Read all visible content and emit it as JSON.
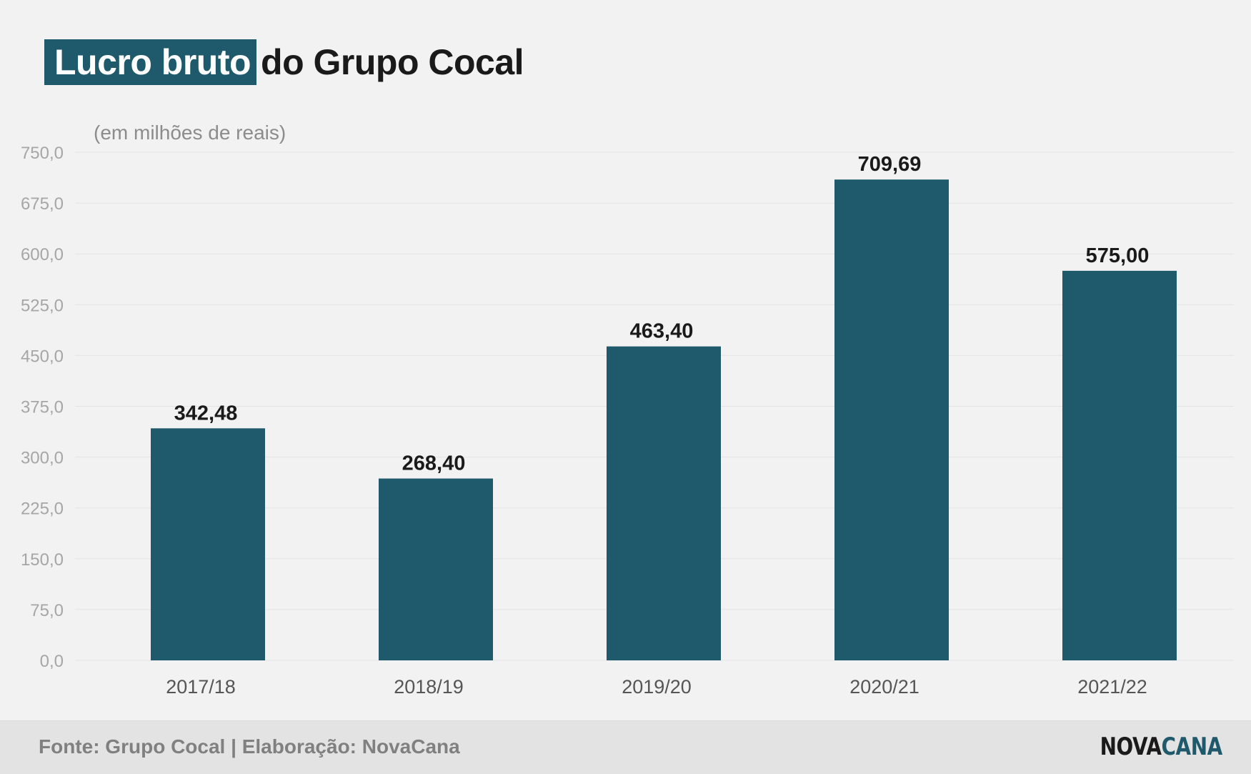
{
  "title": {
    "highlight": "Lucro bruto",
    "rest": "do Grupo Cocal"
  },
  "colors": {
    "bar": "#1e5a6b",
    "background": "#f2f2f2",
    "grid": "#e4e4e4",
    "axis_text": "#a6a6a6",
    "category_text": "#555555",
    "value_label": "#1a1a1a",
    "footer_bg": "#e3e3e3"
  },
  "chart_data": {
    "type": "bar",
    "unit_label": "(em milhões de reais)",
    "categories": [
      "2017/18",
      "2018/19",
      "2019/20",
      "2020/21",
      "2021/22"
    ],
    "values": [
      342.48,
      268.4,
      463.4,
      709.69,
      575.0
    ],
    "value_labels": [
      "342,48",
      "268,40",
      "463,40",
      "709,69",
      "575,00"
    ],
    "ylim": [
      0,
      750
    ],
    "yticks": [
      "0,0",
      "75,0",
      "150,0",
      "225,0",
      "300,0",
      "375,0",
      "450,0",
      "525,0",
      "600,0",
      "675,0",
      "750,0"
    ],
    "grid": true,
    "legend": "none"
  },
  "footer": {
    "source": "Fonte: Grupo Cocal | Elaboração: NovaCana",
    "logo_part1": "NOVA",
    "logo_part2": "CANA"
  }
}
